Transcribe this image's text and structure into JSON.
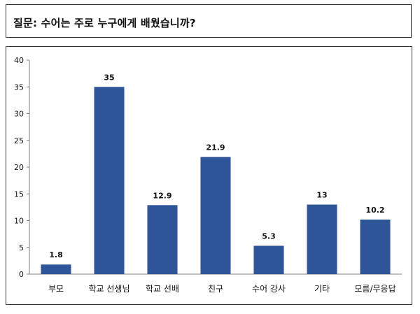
{
  "question": {
    "text": "질문: 수어는 주로 누구에게 배웠습니까?"
  },
  "chart_data": {
    "type": "bar",
    "categories": [
      "부모",
      "학교 선생님",
      "학교 선배",
      "친구",
      "수어 강사",
      "기타",
      "모름/무응답"
    ],
    "values": [
      1.8,
      35,
      12.9,
      21.9,
      5.3,
      13,
      10.2
    ],
    "value_labels": [
      "1.8",
      "35",
      "12.9",
      "21.9",
      "5.3",
      "13",
      "10.2"
    ],
    "ylim": [
      0,
      40
    ],
    "yticks": [
      0,
      5,
      10,
      15,
      20,
      25,
      30,
      35,
      40
    ],
    "grid": false,
    "bar_color": "#2E5597",
    "title": "",
    "xlabel": "",
    "ylabel": ""
  }
}
